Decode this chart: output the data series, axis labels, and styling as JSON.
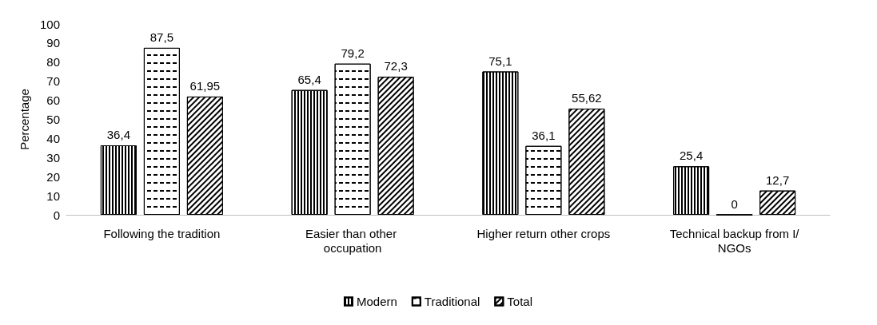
{
  "chart_data": {
    "type": "bar",
    "ylabel": "Percentage",
    "categories": [
      "Following the tradition",
      "Easier than other occupation",
      "Higher return other crops",
      "Technical backup from I/NGOs"
    ],
    "series": [
      {
        "name": "Modern",
        "color": "#000000",
        "values": [
          36.4,
          65.4,
          75.1,
          25.4
        ],
        "value_labels": [
          "36,4",
          "65,4",
          "75,1",
          "25,4"
        ]
      },
      {
        "name": "Traditional",
        "color": "#000000",
        "values": [
          87.5,
          79.2,
          36.1,
          0
        ],
        "value_labels": [
          "87,5",
          "79,2",
          "36,1",
          "0"
        ]
      },
      {
        "name": "Total",
        "color": "#000000",
        "values": [
          61.95,
          72.3,
          55.62,
          12.7
        ],
        "value_labels": [
          "61,95",
          "72,3",
          "55,62",
          "12,7"
        ]
      }
    ],
    "ylim": [
      0,
      100
    ],
    "yticks": [
      0,
      10,
      20,
      30,
      40,
      50,
      60,
      70,
      80,
      90,
      100
    ],
    "grid": false,
    "legend": "bottom"
  }
}
